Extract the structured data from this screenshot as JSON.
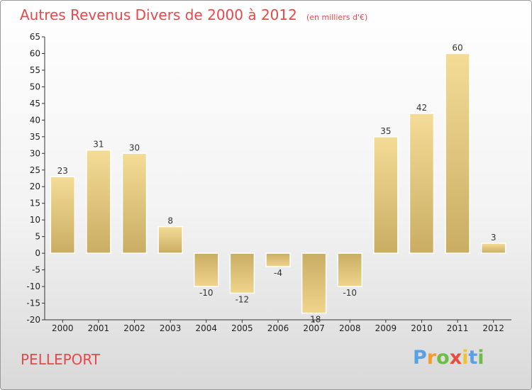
{
  "title": "Autres Revenus Divers de 2000 à 2012",
  "unit": "(en milliers d'€)",
  "commune": "PELLEPORT",
  "logo": {
    "letters": [
      "P",
      "r",
      "o",
      "x",
      "i",
      "t",
      "i"
    ],
    "colors": [
      "#5aa0e6",
      "#f39c2e",
      "#6dbd45",
      "#e84c3d",
      "#f2c12e",
      "#5aa0e6",
      "#6dbd45"
    ]
  },
  "colors": {
    "title": "#e8484a",
    "bar": "#e6c97d",
    "axis": "#333333"
  },
  "chart_data": {
    "type": "bar",
    "categories": [
      "2000",
      "2001",
      "2002",
      "2003",
      "2004",
      "2005",
      "2006",
      "2007",
      "2008",
      "2009",
      "2010",
      "2011",
      "2012"
    ],
    "values": [
      23,
      31,
      30,
      8,
      -10,
      -12,
      -4,
      -18,
      -10,
      35,
      42,
      60,
      3
    ],
    "value_labels": [
      "23",
      "31",
      "30",
      "8",
      "-10",
      "-12",
      "-4",
      "-18",
      "-10",
      "35",
      "42",
      "60",
      "3"
    ],
    "ylim": [
      -20,
      65
    ],
    "yticks": [
      65,
      60,
      55,
      50,
      45,
      40,
      35,
      30,
      25,
      20,
      15,
      10,
      5,
      0,
      -5,
      -10,
      -15,
      -20
    ],
    "grid": false,
    "legend": "none"
  }
}
